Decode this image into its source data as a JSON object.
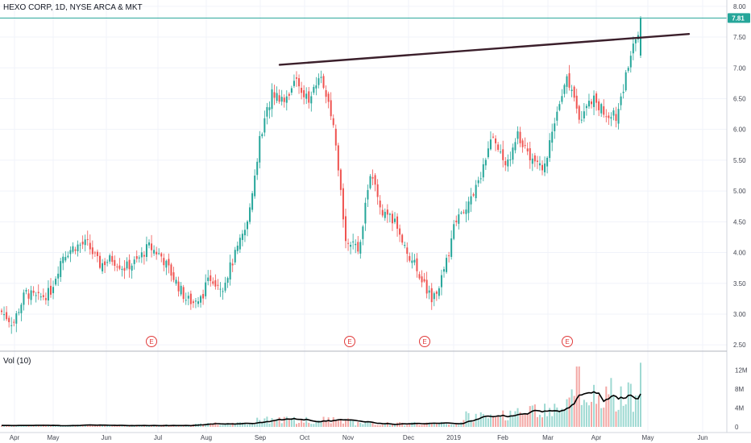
{
  "header": {
    "title": "HEXO CORP, 1D, NYSE ARCA & MKT",
    "volume_label": "Vol (10)"
  },
  "colors": {
    "up": "#26a69a",
    "down": "#ef5350",
    "trendline": "#3b1f2b",
    "price_line": "#26a69a",
    "volume_ma": "#000000",
    "earnings": "#e03a3a"
  },
  "earnings_marker": "E",
  "chart_data": {
    "type": "candlestick",
    "title": "HEXO CORP, 1D, NYSE ARCA & MKT",
    "interval": "1D",
    "y_axis": {
      "ticks": [
        "2.50",
        "3.00",
        "3.50",
        "4.00",
        "4.50",
        "5.00",
        "5.50",
        "6.00",
        "6.50",
        "7.00",
        "7.50",
        "8.00"
      ],
      "ylim": [
        2.5,
        8.0
      ]
    },
    "x_axis": {
      "ticks": [
        "Apr",
        "May",
        "Jun",
        "Jul",
        "Aug",
        "Sep",
        "Oct",
        "Nov",
        "Dec",
        "2019",
        "Feb",
        "Mar",
        "Apr",
        "May",
        "Jun"
      ]
    },
    "last_price": "7.81",
    "volume_axis": {
      "ticks": [
        "0",
        "4M",
        "8M",
        "12M"
      ],
      "max": 14
    },
    "earnings_months": [
      "Jul",
      "Nov",
      "Dec",
      "Mar"
    ],
    "trendline": {
      "from": [
        "Sep",
        7.05
      ],
      "to": [
        "May",
        7.55
      ]
    },
    "close_series": [
      {
        "m": "Apr",
        "v": 3.05
      },
      {
        "m": "Apr",
        "v": 2.85
      },
      {
        "m": "Apr",
        "v": 3.35
      },
      {
        "m": "Apr",
        "v": 3.25
      },
      {
        "m": "May",
        "v": 3.35
      },
      {
        "m": "May",
        "v": 3.95
      },
      {
        "m": "May",
        "v": 4.1
      },
      {
        "m": "May",
        "v": 4.15
      },
      {
        "m": "Jun",
        "v": 3.8
      },
      {
        "m": "Jun",
        "v": 3.9
      },
      {
        "m": "Jun",
        "v": 3.75
      },
      {
        "m": "Jun",
        "v": 3.85
      },
      {
        "m": "Jul",
        "v": 4.1
      },
      {
        "m": "Jul",
        "v": 3.95
      },
      {
        "m": "Jul",
        "v": 3.6
      },
      {
        "m": "Jul",
        "v": 3.25
      },
      {
        "m": "Aug",
        "v": 3.15
      },
      {
        "m": "Aug",
        "v": 3.6
      },
      {
        "m": "Aug",
        "v": 3.45
      },
      {
        "m": "Aug",
        "v": 3.95
      },
      {
        "m": "Sep",
        "v": 4.45
      },
      {
        "m": "Sep",
        "v": 5.8
      },
      {
        "m": "Sep",
        "v": 6.6
      },
      {
        "m": "Sep",
        "v": 6.5
      },
      {
        "m": "Oct",
        "v": 6.8
      },
      {
        "m": "Oct",
        "v": 6.45
      },
      {
        "m": "Oct",
        "v": 6.9
      },
      {
        "m": "Oct",
        "v": 6.0
      },
      {
        "m": "Nov",
        "v": 4.25
      },
      {
        "m": "Nov",
        "v": 4.0
      },
      {
        "m": "Nov",
        "v": 5.3
      },
      {
        "m": "Nov",
        "v": 4.6
      },
      {
        "m": "Dec",
        "v": 4.5
      },
      {
        "m": "Dec",
        "v": 4.0
      },
      {
        "m": "Dec",
        "v": 3.65
      },
      {
        "m": "Dec",
        "v": 3.2
      },
      {
        "m": "2019",
        "v": 3.7
      },
      {
        "m": "2019",
        "v": 4.6
      },
      {
        "m": "2019",
        "v": 4.8
      },
      {
        "m": "2019",
        "v": 5.3
      },
      {
        "m": "Feb",
        "v": 5.9
      },
      {
        "m": "Feb",
        "v": 5.4
      },
      {
        "m": "Feb",
        "v": 5.9
      },
      {
        "m": "Feb",
        "v": 5.55
      },
      {
        "m": "Mar",
        "v": 5.3
      },
      {
        "m": "Mar",
        "v": 6.1
      },
      {
        "m": "Mar",
        "v": 6.85
      },
      {
        "m": "Mar",
        "v": 6.2
      },
      {
        "m": "Apr",
        "v": 6.5
      },
      {
        "m": "Apr",
        "v": 6.3
      },
      {
        "m": "Apr",
        "v": 6.2
      },
      {
        "m": "Apr",
        "v": 7.1
      },
      {
        "m": "Apr",
        "v": 7.81
      }
    ]
  }
}
